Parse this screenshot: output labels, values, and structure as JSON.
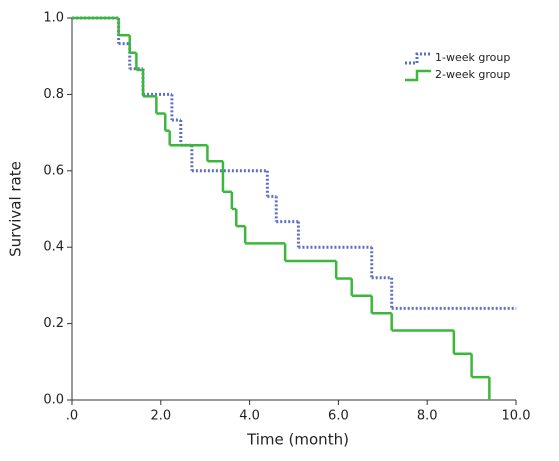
{
  "chart_data": {
    "type": "step",
    "x_label": "Time (month)",
    "y_label": "Survival rate",
    "xlim": [
      0,
      10
    ],
    "ylim": [
      0,
      1
    ],
    "xticks": [
      {
        "value": 0,
        "label": ".0"
      },
      {
        "value": 2,
        "label": "2.0"
      },
      {
        "value": 4,
        "label": "4.0"
      },
      {
        "value": 6,
        "label": "6.0"
      },
      {
        "value": 8,
        "label": "8.0"
      },
      {
        "value": 10,
        "label": "10.0"
      }
    ],
    "yticks": [
      {
        "value": 0,
        "label": "0.0"
      },
      {
        "value": 0.2,
        "label": "0.2"
      },
      {
        "value": 0.4,
        "label": "0.4"
      },
      {
        "value": 0.6,
        "label": "0.6"
      },
      {
        "value": 0.8,
        "label": "0.8"
      },
      {
        "value": 1,
        "label": "1.0"
      }
    ],
    "grid": false,
    "legend": "upper right",
    "series": [
      {
        "name": "1-week group",
        "color": "#5b6fc4",
        "dash": true,
        "x": [
          0,
          1.05,
          1.3,
          1.6,
          2.25,
          2.45,
          2.7,
          4.4,
          4.6,
          5.1,
          6.75,
          7.2,
          10.0
        ],
        "values": [
          1.0,
          0.933,
          0.867,
          0.8,
          0.733,
          0.667,
          0.6,
          0.533,
          0.467,
          0.4,
          0.32,
          0.24,
          0.24
        ]
      },
      {
        "name": "2-week group",
        "color": "#3cb73c",
        "dash": false,
        "x": [
          0,
          1.05,
          1.3,
          1.45,
          1.6,
          1.9,
          2.1,
          2.2,
          3.05,
          3.4,
          3.6,
          3.7,
          3.9,
          4.8,
          5.95,
          6.3,
          6.75,
          7.2,
          8.6,
          9.0,
          9.4
        ],
        "values": [
          1.0,
          0.955,
          0.909,
          0.864,
          0.795,
          0.75,
          0.705,
          0.667,
          0.625,
          0.545,
          0.5,
          0.455,
          0.41,
          0.364,
          0.318,
          0.273,
          0.227,
          0.182,
          0.121,
          0.06,
          0.0
        ]
      }
    ]
  }
}
